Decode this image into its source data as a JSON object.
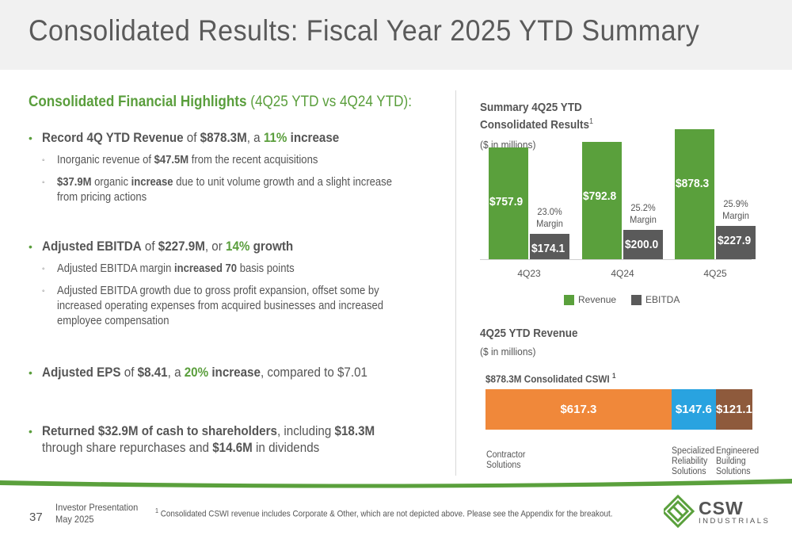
{
  "title": "Consolidated Results: Fiscal Year 2025 YTD Summary",
  "highlights": {
    "heading_bold": "Consolidated Financial Highlights",
    "heading_light": " (4Q25 YTD vs 4Q24 YTD):",
    "b1": {
      "p1": "Record 4Q YTD Revenue",
      "p2": " of ",
      "p3": "$878.3M",
      "p4": ", a ",
      "p5": "11%",
      "p6": " increase"
    },
    "b1s1": {
      "p1": "Inorganic revenue of ",
      "p2": "$47.5M",
      "p3": " from the recent acquisitions"
    },
    "b1s2": {
      "p1": "$37.9M",
      "p2": " organic ",
      "p3": "increase",
      "p4": " due to unit volume growth and a slight increase",
      "p5": "from pricing actions"
    },
    "b2": {
      "p1": "Adjusted EBITDA",
      "p2": " of ",
      "p3": "$227.9M",
      "p4": ", or ",
      "p5": "14%",
      "p6": " growth"
    },
    "b2s1": {
      "p1": "Adjusted EBITDA margin ",
      "p2": "increased 70",
      "p3": " basis points"
    },
    "b2s2": {
      "l1": "Adjusted EBITDA growth due to gross profit expansion, offset some by",
      "l2": "increased operating expenses from acquired businesses and increased",
      "l3": "employee compensation"
    },
    "b3": {
      "p1": "Adjusted EPS",
      "p2": " of ",
      "p3": "$8.41",
      "p4": ", a ",
      "p5": "20%",
      "p6": " increase",
      "p7": ", compared to $7.01"
    },
    "b4": {
      "p1": "Returned $32.9M of cash to shareholders",
      "p2": ", including ",
      "p3": "$18.3M",
      "p4": "through share repurchases and ",
      "p5": "$14.6M",
      "p6": " in dividends"
    }
  },
  "summary_chart": {
    "title_line1": "Summary 4Q25 YTD",
    "title_line2": "Consolidated Results",
    "title_sup": "1",
    "subtitle": "($ in millions)",
    "legend": {
      "revenue": "Revenue",
      "ebitda": "EBITDA"
    },
    "colors": {
      "revenue": "#5aa03c",
      "ebitda": "#5a5a5a"
    }
  },
  "chart_data": {
    "type": "bar",
    "categories": [
      "4Q23",
      "4Q24",
      "4Q25"
    ],
    "series": [
      {
        "name": "Revenue",
        "values": [
          757.9,
          792.8,
          878.3
        ],
        "labels": [
          "$757.9",
          "$792.8",
          "$878.3"
        ]
      },
      {
        "name": "EBITDA",
        "values": [
          174.1,
          200.0,
          227.9
        ],
        "labels": [
          "$174.1",
          "$200.0",
          "$227.9"
        ]
      }
    ],
    "margins": [
      "23.0%",
      "25.2%",
      "25.9%"
    ],
    "margin_word": "Margin",
    "title": "Summary 4Q25 YTD Consolidated Results",
    "ylabel": "($ in millions)"
  },
  "revenue_breakdown": {
    "title": "4Q25 YTD Revenue",
    "subtitle": "($ in millions)",
    "consolidated_label": "$878.3M Consolidated CSWI",
    "consolidated_sup": "1",
    "segments": [
      {
        "value": 617.3,
        "label": "$617.3",
        "name_l1": "Contractor",
        "name_l2": "Solutions",
        "name_l3": "",
        "color": "#f0883a"
      },
      {
        "value": 147.6,
        "label": "$147.6",
        "name_l1": "Specialized",
        "name_l2": "Reliability",
        "name_l3": "Solutions",
        "color": "#29a3e0"
      },
      {
        "value": 121.1,
        "label": "$121.1",
        "name_l1": "Engineered",
        "name_l2": "Building",
        "name_l3": "Solutions",
        "color": "#8e5a3c"
      }
    ]
  },
  "footer": {
    "page_number": "37",
    "presentation_l1": "Investor Presentation",
    "presentation_l2": "May 2025",
    "note_sup": "1",
    "note": " Consolidated CSWI revenue includes Corporate & Other, which are not depicted above.  Please see the Appendix for the breakout.",
    "logo_main": "CSW",
    "logo_sub": "INDUSTRIALS"
  }
}
